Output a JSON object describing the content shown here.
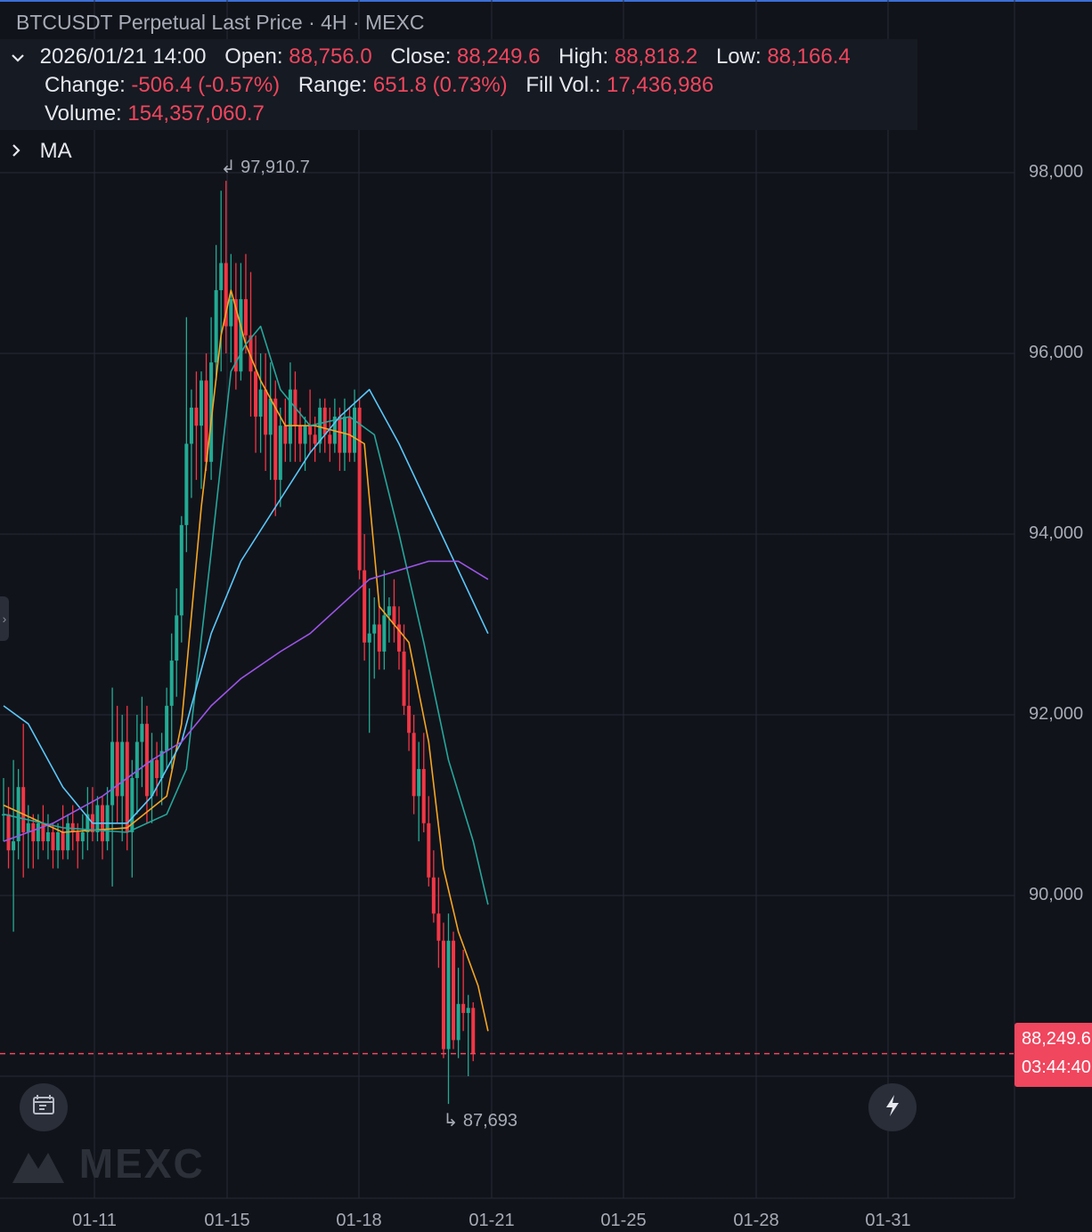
{
  "header": {
    "title": "BTCUSDT Perpetual Last Price · 4H · MEXC",
    "date": "2026/01/21 14:00",
    "open_label": "Open:",
    "open": "88,756.0",
    "close_label": "Close:",
    "close": "88,249.6",
    "high_label": "High:",
    "high": "88,818.2",
    "low_label": "Low:",
    "low": "88,166.4",
    "change_label": "Change:",
    "change": "-506.4 (-0.57%)",
    "range_label": "Range:",
    "range": "651.8 (0.73%)",
    "fillvol_label": "Fill Vol.:",
    "fillvol": "17,436,986",
    "volume_label": "Volume:",
    "volume": "154,357,060.7",
    "ma_label": "MA"
  },
  "price_tag": {
    "price": "88,249.6",
    "countdown": "03:44:40"
  },
  "watermark": "MEXC",
  "colors": {
    "up": "#22ab94",
    "down": "#f23645",
    "background": "#11131a",
    "grid": "#262a35",
    "accent_red": "#f0465e"
  },
  "icons": [
    "chevron-down-icon",
    "chevron-right-icon",
    "replay-icon",
    "lightning-icon"
  ],
  "chart_data": {
    "type": "candlestick",
    "symbol": "BTCUSDT",
    "interval": "4H",
    "ylim": [
      87300,
      99300
    ],
    "y_ticks": [
      "98,000",
      "96,000",
      "94,000",
      "92,000",
      "90,000"
    ],
    "y_tick_values": [
      98000,
      96000,
      94000,
      92000,
      90000
    ],
    "x_ticks": [
      "01-11",
      "01-15",
      "01-18",
      "01-21",
      "01-25",
      "01-28",
      "01-31"
    ],
    "highest": "97,910.7",
    "lowest": "87,693",
    "last_price": 88249.6,
    "candles": [
      [
        90900,
        91300,
        90600,
        90900
      ],
      [
        90900,
        91200,
        90300,
        90500
      ],
      [
        90500,
        91500,
        89600,
        90600
      ],
      [
        90600,
        91400,
        90400,
        91200
      ],
      [
        91200,
        91900,
        90200,
        90700
      ],
      [
        90700,
        91000,
        90300,
        90800
      ],
      [
        90800,
        90900,
        90300,
        90600
      ],
      [
        90600,
        90900,
        90400,
        90800
      ],
      [
        90800,
        91000,
        90500,
        90600
      ],
      [
        90600,
        90900,
        90400,
        90700
      ],
      [
        90700,
        90800,
        90300,
        90500
      ],
      [
        90500,
        90800,
        90300,
        90700
      ],
      [
        90700,
        91000,
        90400,
        90500
      ],
      [
        90500,
        90900,
        90400,
        90800
      ],
      [
        90800,
        91000,
        90500,
        90700
      ],
      [
        90700,
        90800,
        90300,
        90600
      ],
      [
        90600,
        90900,
        90400,
        90700
      ],
      [
        90700,
        91200,
        90500,
        90900
      ],
      [
        90900,
        91200,
        90600,
        90700
      ],
      [
        90700,
        91100,
        90600,
        91000
      ],
      [
        91000,
        91100,
        90400,
        90600
      ],
      [
        90600,
        91200,
        90500,
        91000
      ],
      [
        91000,
        92300,
        90100,
        91700
      ],
      [
        91700,
        92100,
        90800,
        91100
      ],
      [
        91100,
        92000,
        90600,
        91700
      ],
      [
        91700,
        92100,
        90500,
        90700
      ],
      [
        90700,
        91500,
        90200,
        91300
      ],
      [
        91300,
        92000,
        90900,
        91700
      ],
      [
        91700,
        92200,
        91200,
        91900
      ],
      [
        91900,
        92100,
        90800,
        91100
      ],
      [
        91100,
        91800,
        90800,
        91500
      ],
      [
        91500,
        91700,
        91100,
        91300
      ],
      [
        91300,
        91800,
        91000,
        91600
      ],
      [
        91600,
        92300,
        91400,
        92100
      ],
      [
        92100,
        92900,
        91400,
        92600
      ],
      [
        92600,
        93400,
        92200,
        93100
      ],
      [
        93100,
        94200,
        92800,
        94100
      ],
      [
        94100,
        96400,
        93800,
        95000
      ],
      [
        95000,
        95600,
        94400,
        95400
      ],
      [
        95400,
        95800,
        94600,
        95200
      ],
      [
        95200,
        95800,
        94500,
        95700
      ],
      [
        95700,
        96000,
        94700,
        94800
      ],
      [
        94800,
        96400,
        94600,
        95900
      ],
      [
        95900,
        97200,
        95700,
        96700
      ],
      [
        96700,
        97800,
        95800,
        97000
      ],
      [
        97000,
        97910.7,
        96000,
        96300
      ],
      [
        96300,
        97100,
        95900,
        96600
      ],
      [
        96600,
        97000,
        95600,
        95800
      ],
      [
        95800,
        97000,
        95700,
        96600
      ],
      [
        96600,
        97100,
        96000,
        96200
      ],
      [
        96200,
        96900,
        95300,
        95800
      ],
      [
        95800,
        96200,
        94900,
        95300
      ],
      [
        95300,
        96000,
        94900,
        95600
      ],
      [
        95600,
        96000,
        94700,
        95100
      ],
      [
        95100,
        95900,
        94600,
        95500
      ],
      [
        95500,
        95700,
        94200,
        94600
      ],
      [
        94600,
        95400,
        94300,
        95200
      ],
      [
        95200,
        95500,
        94800,
        95000
      ],
      [
        95000,
        95900,
        94800,
        95600
      ],
      [
        95600,
        95800,
        94800,
        95200
      ],
      [
        95200,
        95400,
        94800,
        95000
      ],
      [
        95000,
        95300,
        94700,
        95200
      ],
      [
        95200,
        95600,
        94900,
        95100
      ],
      [
        95100,
        95300,
        94800,
        95000
      ],
      [
        95000,
        95500,
        94900,
        95400
      ],
      [
        95400,
        95500,
        94900,
        95100
      ],
      [
        95100,
        95400,
        94800,
        95000
      ],
      [
        95000,
        95500,
        94900,
        95300
      ],
      [
        95300,
        95400,
        94700,
        94900
      ],
      [
        94900,
        95500,
        94700,
        95300
      ],
      [
        95300,
        95400,
        94800,
        94900
      ],
      [
        94900,
        95600,
        94800,
        95400
      ],
      [
        95400,
        95500,
        93500,
        93600
      ],
      [
        93600,
        94000,
        92600,
        92800
      ],
      [
        92800,
        93400,
        91800,
        92900
      ],
      [
        92900,
        93300,
        92400,
        93000
      ],
      [
        93000,
        93200,
        92500,
        92700
      ],
      [
        92700,
        93600,
        92500,
        93100
      ],
      [
        93100,
        93300,
        92800,
        93200
      ],
      [
        93200,
        93500,
        92800,
        93000
      ],
      [
        93000,
        93200,
        92500,
        92700
      ],
      [
        92700,
        93000,
        92000,
        92100
      ],
      [
        92100,
        92500,
        91600,
        91800
      ],
      [
        91800,
        92000,
        90900,
        91100
      ],
      [
        91100,
        91700,
        90600,
        91400
      ],
      [
        91400,
        91800,
        90700,
        90800
      ],
      [
        90800,
        91100,
        90100,
        90200
      ],
      [
        90200,
        90500,
        89700,
        89800
      ],
      [
        89800,
        90200,
        89200,
        89500
      ],
      [
        89500,
        89700,
        88200,
        88300
      ],
      [
        88300,
        89800,
        87693,
        89500
      ],
      [
        89500,
        89600,
        88300,
        88400
      ],
      [
        88400,
        89200,
        88200,
        88800
      ],
      [
        88800,
        89400,
        88500,
        88700
      ],
      [
        88700,
        88900,
        88000,
        88756
      ],
      [
        88756,
        88818.2,
        88166.4,
        88249.6
      ]
    ],
    "ma_series": [
      {
        "color": "#f5a623",
        "values": [
          [
            0,
            91000
          ],
          [
            12,
            90700
          ],
          [
            25,
            90750
          ],
          [
            33,
            91100
          ],
          [
            36,
            91900
          ],
          [
            40,
            94300
          ],
          [
            44,
            96200
          ],
          [
            46,
            96700
          ],
          [
            49,
            96100
          ],
          [
            52,
            95700
          ],
          [
            57,
            95200
          ],
          [
            63,
            95200
          ],
          [
            70,
            95100
          ],
          [
            73,
            95000
          ],
          [
            76,
            93200
          ],
          [
            82,
            92800
          ],
          [
            86,
            91700
          ],
          [
            89,
            90300
          ],
          [
            92,
            89600
          ],
          [
            96,
            89000
          ],
          [
            98,
            88500
          ]
        ]
      },
      {
        "color": "#26a69a",
        "values": [
          [
            0,
            90900
          ],
          [
            12,
            90750
          ],
          [
            25,
            90700
          ],
          [
            33,
            90900
          ],
          [
            37,
            91400
          ],
          [
            42,
            93800
          ],
          [
            46,
            95800
          ],
          [
            49,
            96100
          ],
          [
            52,
            96300
          ],
          [
            56,
            95600
          ],
          [
            62,
            95200
          ],
          [
            70,
            95300
          ],
          [
            75,
            95100
          ],
          [
            80,
            94000
          ],
          [
            85,
            92800
          ],
          [
            90,
            91500
          ],
          [
            95,
            90600
          ],
          [
            98,
            89900
          ]
        ]
      },
      {
        "color": "#5ac8fa",
        "values": [
          [
            0,
            92100
          ],
          [
            5,
            91900
          ],
          [
            12,
            91200
          ],
          [
            18,
            90800
          ],
          [
            25,
            90800
          ],
          [
            30,
            91100
          ],
          [
            36,
            91700
          ],
          [
            42,
            92900
          ],
          [
            48,
            93700
          ],
          [
            55,
            94300
          ],
          [
            62,
            94900
          ],
          [
            68,
            95300
          ],
          [
            74,
            95600
          ],
          [
            80,
            95000
          ],
          [
            86,
            94300
          ],
          [
            92,
            93600
          ],
          [
            98,
            92900
          ]
        ]
      },
      {
        "color": "#9c55e8",
        "values": [
          [
            0,
            90600
          ],
          [
            10,
            90800
          ],
          [
            20,
            91100
          ],
          [
            30,
            91500
          ],
          [
            36,
            91700
          ],
          [
            42,
            92100
          ],
          [
            48,
            92400
          ],
          [
            56,
            92700
          ],
          [
            62,
            92900
          ],
          [
            68,
            93200
          ],
          [
            74,
            93500
          ],
          [
            80,
            93600
          ],
          [
            86,
            93700
          ],
          [
            92,
            93700
          ],
          [
            98,
            93500
          ]
        ]
      }
    ]
  }
}
